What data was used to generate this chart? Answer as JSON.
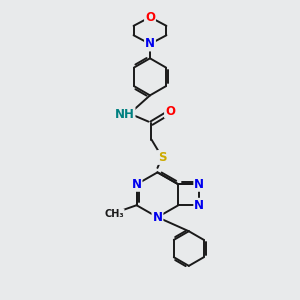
{
  "background_color": "#e8eaeb",
  "bond_color": "#1a1a1a",
  "atom_colors": {
    "O": "#ff0000",
    "N": "#0000ee",
    "S": "#ccaa00",
    "H": "#008080",
    "C": "#1a1a1a"
  },
  "bond_lw": 1.4,
  "font_size": 8.5,
  "figsize": [
    3.0,
    3.0
  ],
  "dpi": 100
}
